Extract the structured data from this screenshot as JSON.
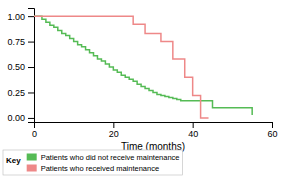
{
  "chart_data": {
    "type": "step",
    "xlabel": "Time (months)",
    "xlim": [
      0,
      60
    ],
    "xticks": [
      0,
      20,
      40,
      60
    ],
    "ylim": [
      -0.04,
      1.08
    ],
    "yticks": [
      {
        "value": 0.0,
        "label": "0.00"
      },
      0.25,
      {
        "value": 0.5,
        "label": "0.50"
      },
      0.75,
      {
        "value": 1.0,
        "label": "1.00"
      }
    ],
    "grid": false,
    "legend": "lower left",
    "legend_title": "Key",
    "series": [
      {
        "name": "Patients who did not receive maintenance",
        "color": "#55bb55",
        "x": [
          0,
          2,
          3,
          4,
          5,
          6,
          7,
          8,
          9,
          10,
          11,
          12,
          13,
          14,
          15,
          16,
          17,
          18,
          19,
          20,
          21,
          22,
          23,
          24,
          25,
          26,
          27,
          28,
          29,
          30,
          31,
          32,
          33,
          34,
          35,
          36,
          37,
          38,
          39,
          40,
          41,
          42,
          43,
          44,
          45,
          50,
          55
        ],
        "values": [
          1.0,
          0.97,
          0.94,
          0.91,
          0.89,
          0.86,
          0.83,
          0.81,
          0.78,
          0.75,
          0.72,
          0.7,
          0.67,
          0.64,
          0.61,
          0.58,
          0.56,
          0.53,
          0.5,
          0.47,
          0.45,
          0.42,
          0.4,
          0.38,
          0.36,
          0.33,
          0.31,
          0.29,
          0.27,
          0.25,
          0.23,
          0.22,
          0.21,
          0.2,
          0.19,
          0.18,
          0.17,
          0.17,
          0.17,
          0.17,
          0.17,
          0.17,
          0.17,
          0.17,
          0.1,
          0.1,
          0.03
        ]
      },
      {
        "name": "Patients who received maintenance",
        "color": "#ee8888",
        "x": [
          0,
          20,
          25,
          28,
          32,
          35,
          38,
          40,
          42,
          44
        ],
        "values": [
          1.0,
          1.0,
          0.92,
          0.83,
          0.75,
          0.58,
          0.4,
          0.22,
          0.0,
          0.0
        ]
      }
    ]
  }
}
